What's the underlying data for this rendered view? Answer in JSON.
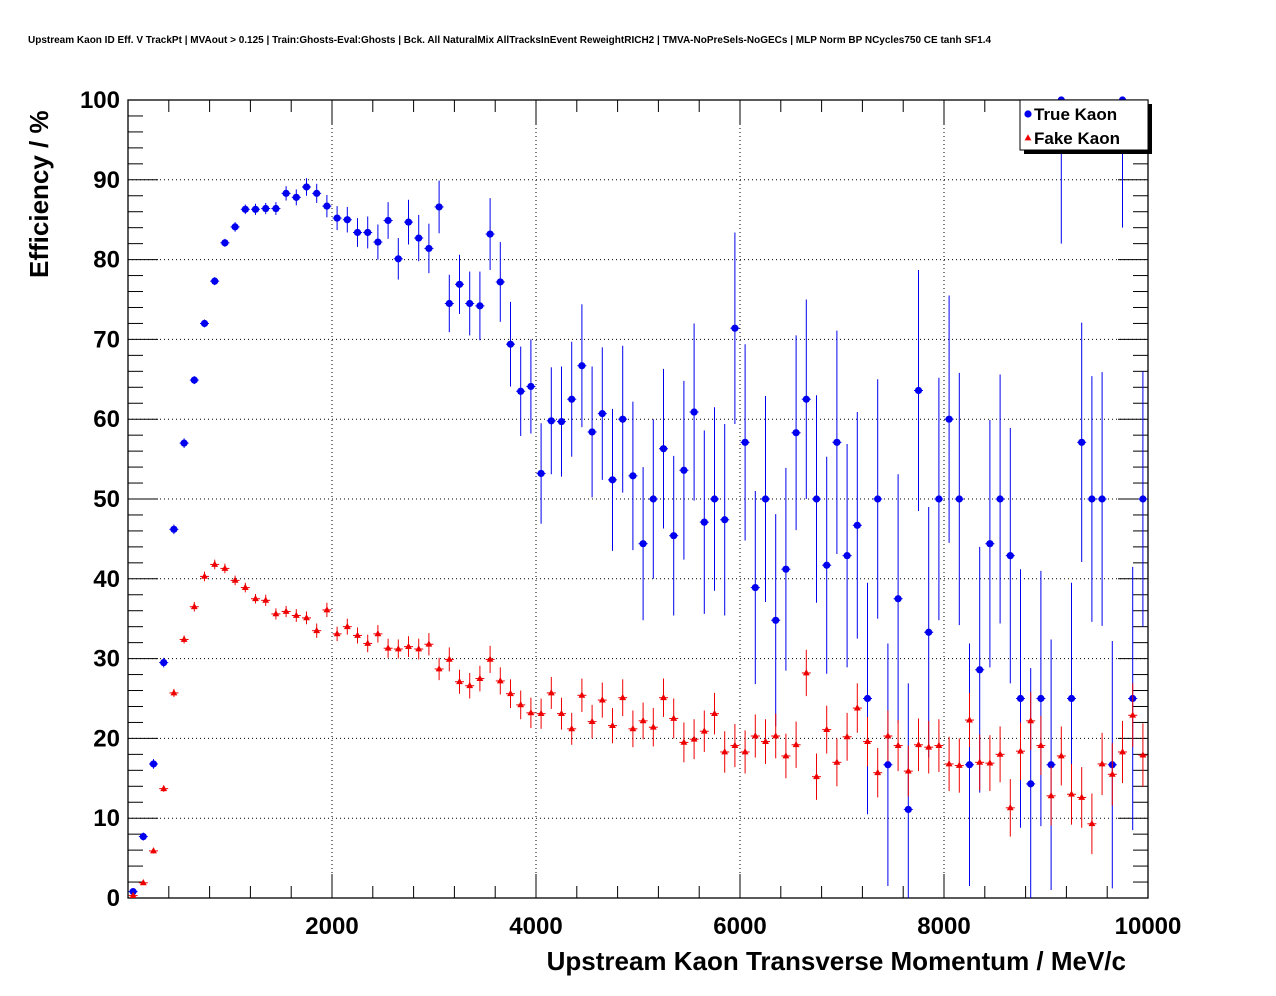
{
  "chart_data": {
    "type": "scatter",
    "title": "Upstream Kaon ID Eff. V TrackPt | MVAout > 0.125 | Train:Ghosts-Eval:Ghosts | Bck. All NaturalMix AllTracksInEvent ReweightRICH2 | TMVA-NoPreSels-NoGECs | MLP Norm BP NCycles750 CE tanh SF1.4",
    "xlabel": "Upstream Kaon Transverse Momentum / MeV/c",
    "ylabel": "Efficiency / %",
    "xlim": [
      0,
      10000
    ],
    "ylim": [
      0,
      100
    ],
    "x_ticks": [
      2000,
      4000,
      6000,
      8000,
      10000
    ],
    "x_tick_labels": [
      "2000",
      "4000",
      "6000",
      "8000",
      "10000"
    ],
    "y_ticks": [
      0,
      10,
      20,
      30,
      40,
      50,
      60,
      70,
      80,
      90,
      100
    ],
    "y_tick_labels": [
      "0",
      "10",
      "20",
      "30",
      "40",
      "50",
      "60",
      "70",
      "80",
      "90",
      "100"
    ],
    "grid": true,
    "legend_position": "top-right",
    "series": [
      {
        "name": "True Kaon",
        "color": "#0000ee",
        "marker": "circle",
        "x": [
          50,
          150,
          250,
          350,
          450,
          550,
          650,
          750,
          850,
          950,
          1050,
          1150,
          1250,
          1350,
          1450,
          1550,
          1650,
          1750,
          1850,
          1950,
          2050,
          2150,
          2250,
          2350,
          2450,
          2550,
          2650,
          2750,
          2850,
          2950,
          3050,
          3150,
          3250,
          3350,
          3450,
          3550,
          3650,
          3750,
          3850,
          3950,
          4050,
          4150,
          4250,
          4350,
          4450,
          4550,
          4650,
          4750,
          4850,
          4950,
          5050,
          5150,
          5250,
          5350,
          5450,
          5550,
          5650,
          5750,
          5850,
          5950,
          6050,
          6150,
          6250,
          6350,
          6450,
          6550,
          6650,
          6750,
          6850,
          6950,
          7050,
          7150,
          7250,
          7350,
          7450,
          7550,
          7650,
          7750,
          7850,
          7950,
          8050,
          8150,
          8250,
          8350,
          8450,
          8550,
          8650,
          8750,
          8850,
          8950,
          9050,
          9150,
          9250,
          9350,
          9450,
          9550,
          9650,
          9750,
          9850,
          9950
        ],
        "y": [
          0.8,
          7.7,
          16.8,
          29.5,
          46.2,
          57,
          64.9,
          72,
          77.3,
          82.1,
          84.1,
          86.3,
          86.3,
          86.4,
          86.4,
          88.3,
          87.8,
          89.1,
          88.3,
          86.7,
          85.2,
          85,
          83.4,
          83.4,
          82.2,
          84.9,
          80.1,
          84.7,
          82.7,
          81.4,
          86.6,
          74.5,
          76.9,
          74.5,
          74.2,
          83.2,
          77.2,
          69.4,
          63.5,
          64.1,
          53.2,
          59.8,
          59.7,
          62.5,
          66.7,
          58.4,
          60.7,
          52.4,
          60,
          52.9,
          44.4,
          50,
          56.3,
          45.4,
          53.6,
          60.9,
          47.1,
          50,
          47.4,
          71.4,
          57.1,
          38.9,
          50,
          34.8,
          41.2,
          58.3,
          62.5,
          50,
          41.7,
          57.1,
          42.9,
          46.7,
          25,
          50,
          16.7,
          37.5,
          11.1,
          63.6,
          33.3,
          50,
          60,
          50,
          16.7,
          28.6,
          44.4,
          50,
          42.9,
          25,
          14.3,
          25,
          16.7,
          100,
          25,
          57.1,
          50,
          50,
          16.7,
          100,
          25,
          50
        ],
        "err": [
          0.2,
          0.5,
          0.6,
          0.6,
          0.6,
          0.6,
          0.5,
          0.5,
          0.5,
          0.5,
          0.6,
          0.6,
          0.7,
          0.7,
          0.8,
          0.9,
          1,
          1.1,
          1.2,
          1.4,
          1.5,
          1.6,
          1.8,
          2,
          2.2,
          2.3,
          2.6,
          2.8,
          2.9,
          3.1,
          3.3,
          3.6,
          3.7,
          4,
          4.3,
          4.5,
          5,
          5.3,
          5.6,
          5.9,
          6.3,
          6.7,
          6.9,
          7.2,
          7.7,
          8.2,
          8.3,
          8.9,
          9.2,
          9.3,
          9.6,
          10,
          10,
          10,
          11.2,
          11.1,
          11.5,
          11.5,
          12,
          12,
          12.3,
          12.1,
          12.9,
          13.3,
          12.7,
          12.2,
          12.5,
          13,
          13.6,
          14,
          14,
          14.2,
          14.5,
          15,
          15.2,
          15.6,
          15.8,
          15.1,
          15.7,
          15.2,
          15.5,
          15.8,
          15.2,
          15.4,
          15.5,
          15.6,
          16,
          16.2,
          14.5,
          16,
          15.7,
          18,
          14.5,
          15,
          15.4,
          15.9,
          15.5,
          16,
          16.5,
          16
        ]
      },
      {
        "name": "Fake Kaon",
        "color": "#ee0000",
        "marker": "triangle",
        "x": [
          50,
          150,
          250,
          350,
          450,
          550,
          650,
          750,
          850,
          950,
          1050,
          1150,
          1250,
          1350,
          1450,
          1550,
          1650,
          1750,
          1850,
          1950,
          2050,
          2150,
          2250,
          2350,
          2450,
          2550,
          2650,
          2750,
          2850,
          2950,
          3050,
          3150,
          3250,
          3350,
          3450,
          3550,
          3650,
          3750,
          3850,
          3950,
          4050,
          4150,
          4250,
          4350,
          4450,
          4550,
          4650,
          4750,
          4850,
          4950,
          5050,
          5150,
          5250,
          5350,
          5450,
          5550,
          5650,
          5750,
          5850,
          5950,
          6050,
          6150,
          6250,
          6350,
          6450,
          6550,
          6650,
          6750,
          6850,
          6950,
          7050,
          7150,
          7250,
          7350,
          7450,
          7550,
          7650,
          7750,
          7850,
          7950,
          8050,
          8150,
          8250,
          8350,
          8450,
          8550,
          8650,
          8750,
          8850,
          8950,
          9050,
          9150,
          9250,
          9350,
          9450,
          9550,
          9650,
          9750,
          9850,
          9950
        ],
        "y": [
          0.3,
          1.9,
          5.9,
          13.7,
          25.7,
          32.4,
          36.5,
          40.3,
          41.8,
          41.3,
          39.8,
          38.9,
          37.5,
          37.3,
          35.6,
          35.9,
          35.4,
          35.1,
          33.5,
          36.1,
          33.1,
          34,
          32.9,
          31.9,
          33.1,
          31.3,
          31.2,
          31.5,
          31.2,
          31.8,
          28.7,
          29.9,
          27.1,
          26.6,
          27.5,
          29.9,
          27.2,
          25.6,
          24.2,
          23.2,
          23.1,
          25.7,
          23.1,
          21.2,
          25.4,
          22.1,
          24.8,
          21.6,
          25.1,
          21.2,
          22.2,
          21.4,
          25.1,
          22.5,
          19.5,
          19.9,
          20.9,
          23.1,
          18.3,
          19.1,
          18.3,
          20.3,
          19.6,
          20.3,
          17.8,
          19.2,
          28.2,
          15.2,
          21.1,
          17,
          20.2,
          23.8,
          19.6,
          15.7,
          20.3,
          19.1,
          15.9,
          19.2,
          18.9,
          19.1,
          16.8,
          16.6,
          22.3,
          17,
          16.9,
          18,
          11.3,
          18.4,
          22.2,
          19.1,
          12.8,
          17.8,
          13,
          12.6,
          9.3,
          16.8,
          15.5,
          18.3,
          22.9,
          17.9
        ],
        "err": [
          0.1,
          0.2,
          0.3,
          0.4,
          0.5,
          0.5,
          0.6,
          0.6,
          0.6,
          0.6,
          0.6,
          0.6,
          0.6,
          0.7,
          0.7,
          0.7,
          0.8,
          0.8,
          0.9,
          0.9,
          0.9,
          1,
          1,
          1.1,
          1.1,
          1.2,
          1.2,
          1.3,
          1.3,
          1.4,
          1.4,
          1.5,
          1.5,
          1.6,
          1.6,
          1.7,
          1.7,
          1.8,
          1.8,
          1.9,
          1.9,
          2,
          2,
          2,
          2.1,
          2.1,
          2.2,
          2.2,
          2.3,
          2.3,
          2.3,
          2.4,
          2.4,
          2.5,
          2.5,
          2.5,
          2.6,
          2.6,
          2.6,
          2.7,
          2.7,
          2.7,
          2.8,
          2.8,
          2.8,
          2.9,
          2.9,
          2.9,
          3,
          3,
          3,
          3.1,
          3.1,
          3.1,
          3.2,
          3.2,
          3.2,
          3.3,
          3.3,
          3.3,
          3.4,
          3.4,
          3.4,
          3.5,
          3.5,
          3.5,
          3.6,
          3.6,
          3.6,
          3.7,
          3.7,
          3.7,
          3.8,
          3.8,
          3.8,
          3.9,
          3.9,
          3.9,
          4,
          4
        ]
      }
    ]
  }
}
